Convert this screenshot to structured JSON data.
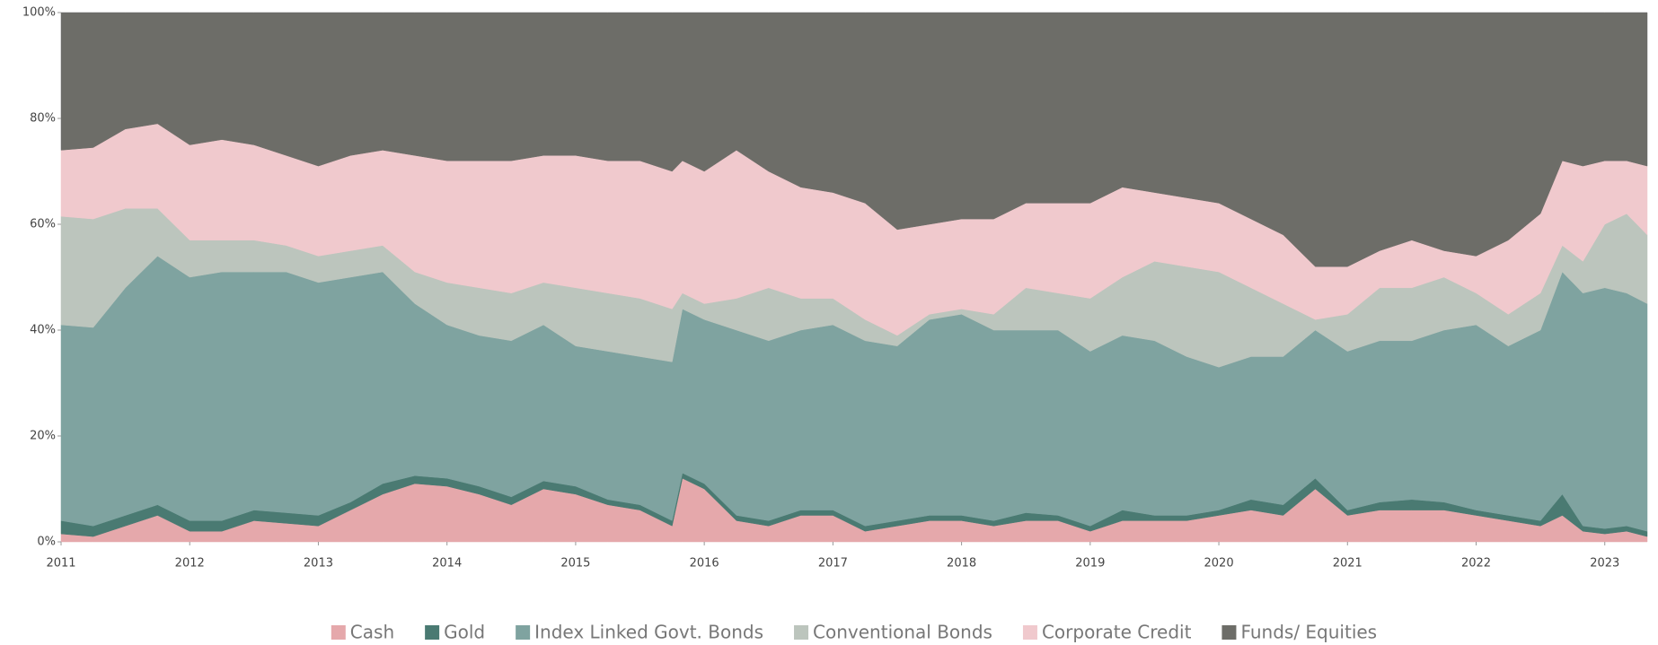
{
  "chart_data": {
    "type": "stacked_area",
    "x": [
      2011,
      2011.25,
      2011.5,
      2011.75,
      2012,
      2012.25,
      2012.5,
      2012.75,
      2013,
      2013.25,
      2013.5,
      2013.75,
      2014,
      2014.25,
      2014.5,
      2014.75,
      2015,
      2015.25,
      2015.5,
      2015.75,
      2015.83,
      2016,
      2016.25,
      2016.5,
      2016.75,
      2017,
      2017.25,
      2017.5,
      2017.75,
      2018,
      2018.25,
      2018.5,
      2018.75,
      2019,
      2019.25,
      2019.5,
      2019.75,
      2020,
      2020.25,
      2020.5,
      2020.75,
      2021,
      2021.25,
      2021.5,
      2021.75,
      2022,
      2022.25,
      2022.5,
      2022.67,
      2022.83,
      2023,
      2023.17,
      2023.33
    ],
    "series": [
      {
        "name": "Cash",
        "color": "#e5a8ab",
        "values": [
          1.5,
          1,
          3,
          5,
          2,
          2,
          4,
          3.5,
          3,
          6,
          9,
          11,
          10.5,
          9,
          7,
          10,
          9,
          7,
          6,
          3,
          12,
          10,
          4,
          3,
          5,
          5,
          2,
          3,
          4,
          4,
          3,
          4,
          4,
          2,
          4,
          4,
          4,
          5,
          6,
          5,
          10,
          5,
          6,
          6,
          6,
          5,
          4,
          3,
          5,
          2,
          1.5,
          2,
          1
        ]
      },
      {
        "name": "Gold",
        "color": "#4a7a72",
        "values": [
          2.5,
          2,
          2,
          2,
          2,
          2,
          2,
          2,
          2,
          1.5,
          2,
          1.5,
          1.5,
          1.5,
          1.5,
          1.5,
          1.5,
          1,
          1,
          1,
          1,
          1,
          1,
          1,
          1,
          1,
          1,
          1,
          1,
          1,
          1,
          1.5,
          1,
          1,
          2,
          1,
          1,
          1,
          2,
          2,
          2,
          1,
          1.5,
          2,
          1.5,
          1,
          1,
          1,
          4,
          1,
          1,
          1,
          1
        ]
      },
      {
        "name": "Index Linked Govt. Bonds",
        "color": "#7fa3a0",
        "values": [
          37,
          37.5,
          43,
          47,
          46,
          47,
          45,
          45.5,
          44,
          42.5,
          40,
          32.5,
          29,
          28.5,
          29.5,
          29.5,
          26.5,
          28,
          28,
          30,
          31,
          31,
          35,
          34,
          34,
          35,
          35,
          33,
          37,
          38,
          36,
          34.5,
          35,
          33,
          33,
          33,
          30,
          27,
          27,
          28,
          28,
          30,
          30.5,
          30,
          32.5,
          35,
          32,
          36,
          42,
          44,
          45.5,
          44,
          43
        ]
      },
      {
        "name": "Conventional Bonds",
        "color": "#bcc5bd",
        "values": [
          20.5,
          20.5,
          15,
          9,
          7,
          6,
          6,
          5,
          5,
          5,
          5,
          6,
          8,
          9,
          9,
          8,
          11,
          11,
          11,
          10,
          3,
          3,
          6,
          10,
          6,
          5,
          4,
          2,
          1,
          1,
          3,
          8,
          7,
          10,
          11,
          15,
          17,
          18,
          13,
          10,
          2,
          7,
          10,
          10,
          10,
          6,
          6,
          7,
          5,
          6,
          12,
          15,
          13
        ]
      },
      {
        "name": "Corporate Credit",
        "color": "#f0c9cd",
        "values": [
          12.5,
          13.5,
          15,
          16,
          18,
          19,
          18,
          17,
          17,
          18,
          18,
          22,
          23,
          24,
          25,
          24,
          25,
          25,
          26,
          26,
          25,
          25,
          28,
          22,
          21,
          20,
          22,
          20,
          17,
          17,
          18,
          16,
          17,
          18,
          17,
          13,
          13,
          13,
          13,
          13,
          10,
          9,
          7,
          9,
          5,
          7,
          14,
          15,
          16,
          18,
          12,
          10,
          13
        ]
      },
      {
        "name": "Funds/ Equities",
        "color": "#6d6d68",
        "values": [
          26,
          25.5,
          22,
          21,
          25,
          24,
          25,
          27,
          29,
          27,
          26,
          27,
          28,
          28,
          28,
          27,
          27,
          28,
          28,
          30,
          28,
          30,
          26,
          30,
          33,
          34,
          36,
          41,
          40,
          39,
          39,
          36,
          36,
          36,
          33,
          34,
          35,
          36,
          39,
          42,
          48,
          48,
          45,
          43,
          45,
          46,
          43,
          38,
          28,
          29,
          28,
          28,
          29
        ]
      }
    ],
    "xlim": [
      2011,
      2023.33
    ],
    "xticks": [
      2011,
      2012,
      2013,
      2014,
      2015,
      2016,
      2017,
      2018,
      2019,
      2020,
      2021,
      2022,
      2023
    ],
    "ylim": [
      0,
      100
    ],
    "yticks": [
      {
        "value": 0,
        "label": "0%"
      },
      {
        "value": 20,
        "label": "20%"
      },
      {
        "value": 40,
        "label": "40%"
      },
      {
        "value": 60,
        "label": "60%"
      },
      {
        "value": 80,
        "label": "80%"
      },
      {
        "value": 100,
        "label": "100%"
      }
    ],
    "legend": "bottom"
  }
}
